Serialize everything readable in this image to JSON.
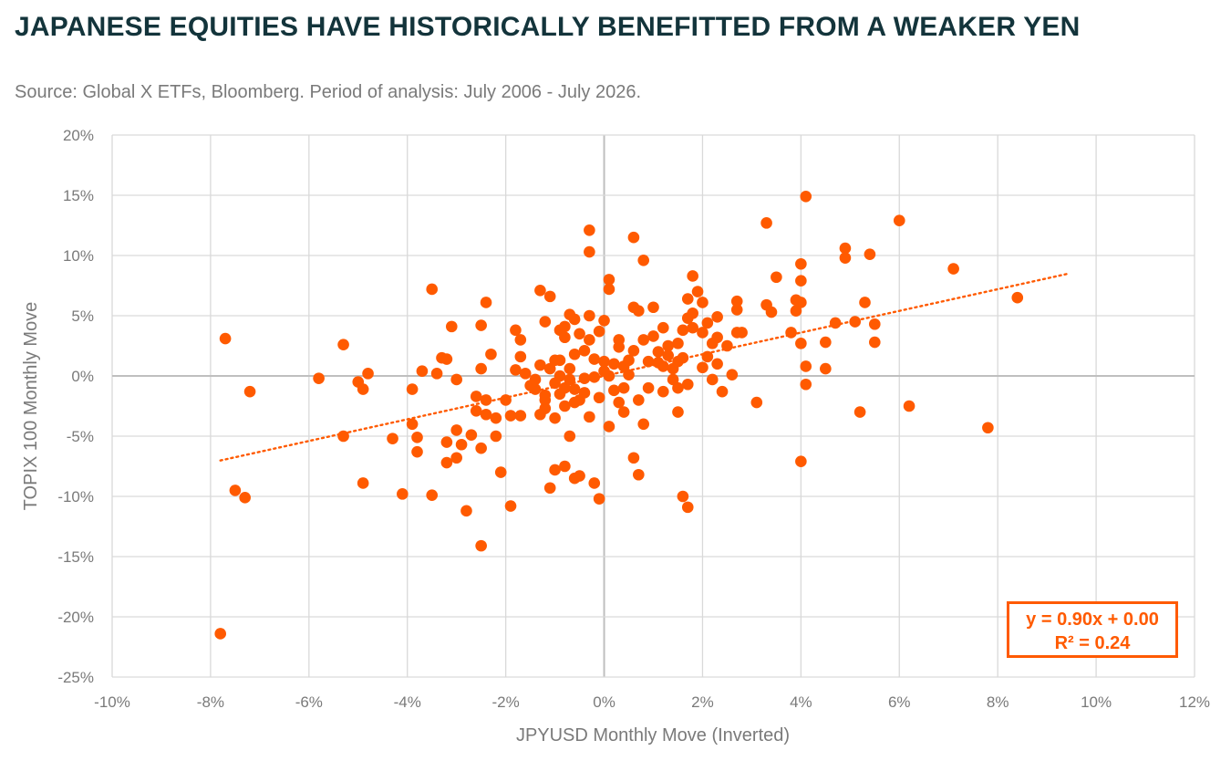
{
  "title": "JAPANESE EQUITIES HAVE HISTORICALLY BENEFITTED FROM A WEAKER YEN",
  "subtitle": "Source: Global X ETFs, Bloomberg. Period of analysis: July 2006 - July 2026.",
  "colors": {
    "accent": "#ff5a00",
    "title": "#13343b",
    "grid": "#d9d9d9",
    "tick": "#7a7a7a"
  },
  "annotation": {
    "equation": "y = 0.90x + 0.00",
    "r2": "R² = 0.24"
  },
  "chart_data": {
    "type": "scatter",
    "xlabel": "JPYUSD Monthly Move (Inverted)",
    "ylabel": "TOPIX 100 Monthly Move",
    "xlim": [
      -10,
      12
    ],
    "ylim": [
      -25,
      20
    ],
    "x_ticks": [
      -10,
      -8,
      -6,
      -4,
      -2,
      0,
      2,
      4,
      6,
      8,
      10,
      12
    ],
    "y_ticks": [
      -25,
      -20,
      -15,
      -10,
      -5,
      0,
      5,
      10,
      15,
      20
    ],
    "x_tick_labels": [
      "-10%",
      "-8%",
      "-6%",
      "-4%",
      "-2%",
      "0%",
      "2%",
      "4%",
      "6%",
      "8%",
      "10%",
      "12%"
    ],
    "y_tick_labels": [
      "-25%",
      "-20%",
      "-15%",
      "-10%",
      "-5%",
      "0%",
      "5%",
      "10%",
      "15%",
      "20%"
    ],
    "grid": true,
    "trendline": {
      "slope": 0.9,
      "intercept": 0.0,
      "x_range": [
        -7.8,
        9.4
      ],
      "style": "dotted"
    },
    "points": [
      [
        -7.8,
        -21.4
      ],
      [
        -7.7,
        3.1
      ],
      [
        -7.5,
        -9.5
      ],
      [
        -7.3,
        -10.1
      ],
      [
        -7.2,
        -1.3
      ],
      [
        -5.8,
        -0.2
      ],
      [
        -5.3,
        2.6
      ],
      [
        -5.3,
        -5.0
      ],
      [
        -5.0,
        -0.5
      ],
      [
        -4.9,
        -1.1
      ],
      [
        -4.9,
        -8.9
      ],
      [
        -4.8,
        0.2
      ],
      [
        -4.3,
        -5.2
      ],
      [
        -4.1,
        -9.8
      ],
      [
        -3.9,
        -1.1
      ],
      [
        -3.9,
        -4.0
      ],
      [
        -3.8,
        -5.1
      ],
      [
        -3.8,
        -6.3
      ],
      [
        -3.7,
        0.4
      ],
      [
        -3.5,
        7.2
      ],
      [
        -3.5,
        -9.9
      ],
      [
        -3.4,
        0.2
      ],
      [
        -3.3,
        1.5
      ],
      [
        -3.2,
        1.4
      ],
      [
        -3.2,
        -5.5
      ],
      [
        -3.2,
        -7.2
      ],
      [
        -3.1,
        4.1
      ],
      [
        -3.0,
        -4.5
      ],
      [
        -3.0,
        -6.8
      ],
      [
        -3.0,
        -0.3
      ],
      [
        -2.9,
        -5.7
      ],
      [
        -2.8,
        -11.2
      ],
      [
        -2.7,
        -4.9
      ],
      [
        -2.6,
        -2.9
      ],
      [
        -2.6,
        -1.7
      ],
      [
        -2.5,
        4.2
      ],
      [
        -2.5,
        0.6
      ],
      [
        -2.5,
        -6.0
      ],
      [
        -2.5,
        -14.1
      ],
      [
        -2.4,
        6.1
      ],
      [
        -2.4,
        -2.0
      ],
      [
        -2.4,
        -3.2
      ],
      [
        -2.3,
        1.8
      ],
      [
        -2.2,
        -3.5
      ],
      [
        -2.2,
        -5.0
      ],
      [
        -2.1,
        -8.0
      ],
      [
        -2.0,
        -2.0
      ],
      [
        -1.9,
        -10.8
      ],
      [
        -1.9,
        -3.3
      ],
      [
        -1.8,
        3.8
      ],
      [
        -1.8,
        0.5
      ],
      [
        -1.7,
        3.0
      ],
      [
        -1.7,
        1.6
      ],
      [
        -1.7,
        -3.3
      ],
      [
        -1.6,
        0.2
      ],
      [
        -1.5,
        -0.8
      ],
      [
        -1.4,
        -0.3
      ],
      [
        -1.4,
        -1.1
      ],
      [
        -1.3,
        7.1
      ],
      [
        -1.3,
        0.9
      ],
      [
        -1.3,
        -3.2
      ],
      [
        -1.2,
        -2.7
      ],
      [
        -1.2,
        -2.0
      ],
      [
        -1.2,
        -1.6
      ],
      [
        -1.2,
        4.5
      ],
      [
        -1.1,
        6.6
      ],
      [
        -1.1,
        0.6
      ],
      [
        -1.1,
        -9.3
      ],
      [
        -1.0,
        -7.8
      ],
      [
        -1.0,
        1.3
      ],
      [
        -1.0,
        -0.6
      ],
      [
        -1.0,
        -3.5
      ],
      [
        -0.9,
        3.8
      ],
      [
        -0.9,
        1.3
      ],
      [
        -0.9,
        0.0
      ],
      [
        -0.9,
        -1.5
      ],
      [
        -0.8,
        -7.5
      ],
      [
        -0.8,
        4.1
      ],
      [
        -0.8,
        3.2
      ],
      [
        -0.8,
        -1.0
      ],
      [
        -0.8,
        -2.5
      ],
      [
        -0.7,
        5.1
      ],
      [
        -0.7,
        -5.0
      ],
      [
        -0.7,
        0.6
      ],
      [
        -0.7,
        -0.3
      ],
      [
        -0.6,
        4.7
      ],
      [
        -0.6,
        1.8
      ],
      [
        -0.6,
        -1.1
      ],
      [
        -0.6,
        -2.2
      ],
      [
        -0.6,
        -8.5
      ],
      [
        -0.5,
        -8.3
      ],
      [
        -0.5,
        3.5
      ],
      [
        -0.5,
        -2.0
      ],
      [
        -0.4,
        2.1
      ],
      [
        -0.4,
        -0.2
      ],
      [
        -0.4,
        -1.4
      ],
      [
        -0.3,
        12.1
      ],
      [
        -0.3,
        10.3
      ],
      [
        -0.3,
        5.0
      ],
      [
        -0.3,
        3.0
      ],
      [
        -0.3,
        -3.4
      ],
      [
        -0.2,
        1.4
      ],
      [
        -0.2,
        -0.1
      ],
      [
        -0.2,
        -8.9
      ],
      [
        -0.1,
        -10.2
      ],
      [
        -0.1,
        3.7
      ],
      [
        -0.1,
        -1.8
      ],
      [
        0.0,
        4.6
      ],
      [
        0.0,
        1.2
      ],
      [
        0.0,
        0.4
      ],
      [
        0.1,
        8.0
      ],
      [
        0.1,
        7.2
      ],
      [
        0.1,
        -4.2
      ],
      [
        0.1,
        0.0
      ],
      [
        0.2,
        1.0
      ],
      [
        0.2,
        -1.2
      ],
      [
        0.3,
        3.0
      ],
      [
        0.3,
        2.4
      ],
      [
        0.3,
        -2.2
      ],
      [
        0.4,
        0.8
      ],
      [
        0.4,
        -1.0
      ],
      [
        0.4,
        -3.0
      ],
      [
        0.5,
        1.3
      ],
      [
        0.5,
        0.1
      ],
      [
        0.6,
        11.5
      ],
      [
        0.6,
        5.7
      ],
      [
        0.6,
        2.1
      ],
      [
        0.6,
        -6.8
      ],
      [
        0.7,
        5.4
      ],
      [
        0.7,
        -2.0
      ],
      [
        0.7,
        -8.2
      ],
      [
        0.8,
        9.6
      ],
      [
        0.8,
        3.0
      ],
      [
        0.8,
        -4.0
      ],
      [
        0.9,
        1.2
      ],
      [
        0.9,
        -1.0
      ],
      [
        1.0,
        5.7
      ],
      [
        1.0,
        3.3
      ],
      [
        1.1,
        2.0
      ],
      [
        1.1,
        1.1
      ],
      [
        1.2,
        4.0
      ],
      [
        1.2,
        0.8
      ],
      [
        1.2,
        -1.3
      ],
      [
        1.3,
        2.5
      ],
      [
        1.3,
        1.7
      ],
      [
        1.4,
        0.6
      ],
      [
        1.4,
        -0.3
      ],
      [
        1.5,
        2.7
      ],
      [
        1.5,
        1.2
      ],
      [
        1.5,
        -1.0
      ],
      [
        1.5,
        -3.0
      ],
      [
        1.6,
        3.8
      ],
      [
        1.6,
        1.5
      ],
      [
        1.6,
        -10.0
      ],
      [
        1.7,
        -10.9
      ],
      [
        1.7,
        6.4
      ],
      [
        1.7,
        4.8
      ],
      [
        1.7,
        -0.7
      ],
      [
        1.8,
        8.3
      ],
      [
        1.8,
        4.0
      ],
      [
        1.8,
        5.2
      ],
      [
        1.9,
        7.0
      ],
      [
        2.0,
        6.1
      ],
      [
        2.0,
        3.6
      ],
      [
        2.0,
        0.7
      ],
      [
        2.1,
        1.6
      ],
      [
        2.1,
        4.4
      ],
      [
        2.2,
        2.7
      ],
      [
        2.2,
        -0.3
      ],
      [
        2.3,
        4.9
      ],
      [
        2.3,
        3.2
      ],
      [
        2.3,
        1.0
      ],
      [
        2.4,
        -1.3
      ],
      [
        2.5,
        2.5
      ],
      [
        2.6,
        0.1
      ],
      [
        2.7,
        6.2
      ],
      [
        2.7,
        5.5
      ],
      [
        2.7,
        3.6
      ],
      [
        2.8,
        3.6
      ],
      [
        3.1,
        -2.2
      ],
      [
        3.3,
        12.7
      ],
      [
        3.3,
        5.9
      ],
      [
        3.4,
        5.3
      ],
      [
        3.5,
        8.2
      ],
      [
        3.8,
        3.6
      ],
      [
        3.9,
        5.4
      ],
      [
        3.9,
        6.3
      ],
      [
        4.0,
        7.9
      ],
      [
        4.0,
        6.1
      ],
      [
        4.0,
        2.7
      ],
      [
        4.0,
        -7.1
      ],
      [
        4.0,
        9.3
      ],
      [
        4.1,
        14.9
      ],
      [
        4.1,
        0.8
      ],
      [
        4.1,
        -0.7
      ],
      [
        4.5,
        2.8
      ],
      [
        4.5,
        0.6
      ],
      [
        4.7,
        4.4
      ],
      [
        4.9,
        10.6
      ],
      [
        4.9,
        9.8
      ],
      [
        5.1,
        4.5
      ],
      [
        5.2,
        -3.0
      ],
      [
        5.3,
        6.1
      ],
      [
        5.4,
        10.1
      ],
      [
        5.5,
        4.3
      ],
      [
        5.5,
        2.8
      ],
      [
        6.0,
        12.9
      ],
      [
        6.2,
        -2.5
      ],
      [
        7.1,
        8.9
      ],
      [
        7.8,
        -4.3
      ],
      [
        8.4,
        6.5
      ]
    ]
  }
}
